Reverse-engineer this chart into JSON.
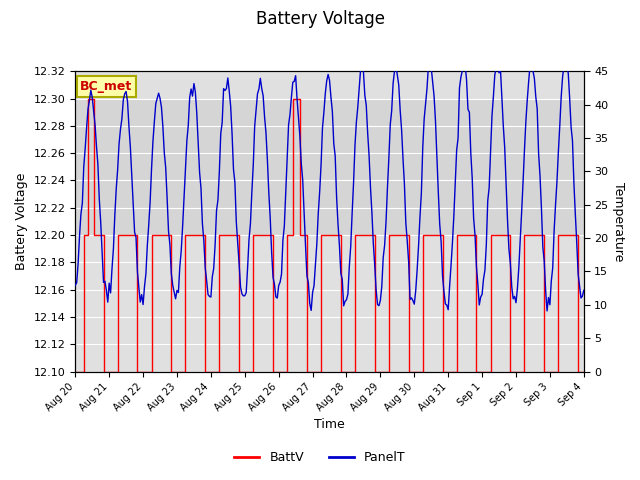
{
  "title": "Battery Voltage",
  "xlabel": "Time",
  "ylabel_left": "Battery Voltage",
  "ylabel_right": "Temperature",
  "ylim_left": [
    12.1,
    12.32
  ],
  "ylim_right": [
    0,
    45
  ],
  "yticks_left": [
    12.1,
    12.12,
    12.14,
    12.16,
    12.18,
    12.2,
    12.22,
    12.24,
    12.26,
    12.28,
    12.3,
    12.32
  ],
  "yticks_right": [
    0,
    5,
    10,
    15,
    20,
    25,
    30,
    35,
    40,
    45
  ],
  "xtick_labels": [
    "Aug 20",
    "Aug 21",
    "Aug 22",
    "Aug 23",
    "Aug 24",
    "Aug 25",
    "Aug 26",
    "Aug 27",
    "Aug 28",
    "Aug 29",
    "Aug 30",
    "Aug 31",
    "Sep 1",
    "Sep 2",
    "Sep 3",
    "Sep 4"
  ],
  "fig_facecolor": "#ffffff",
  "plot_facecolor": "#e0e0e0",
  "shaded_band_color": "#cccccc",
  "annotation_box_text": "BC_met",
  "annotation_box_facecolor": "#ffffaa",
  "annotation_box_edgecolor": "#aaaa00",
  "annotation_text_color": "#cc0000",
  "legend_entries": [
    "BattV",
    "PanelT"
  ],
  "batt_color": "#ff0000",
  "panel_color": "#0000cc",
  "grid_color": "#ffffff",
  "title_fontsize": 12,
  "label_fontsize": 9,
  "tick_fontsize": 8
}
